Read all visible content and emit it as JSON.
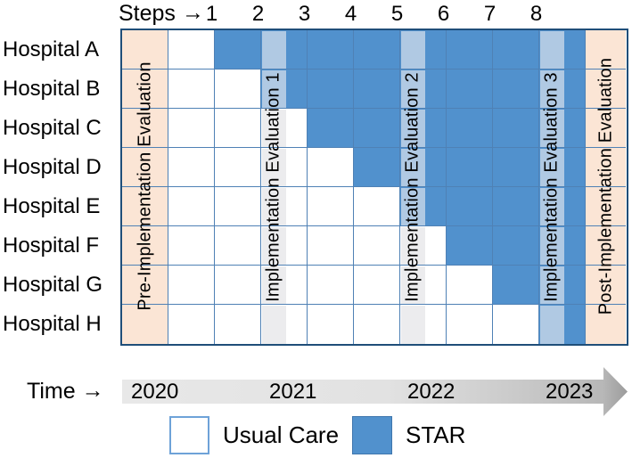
{
  "figure": {
    "steps_label": "Steps",
    "time_label": "Time",
    "arrow": "→",
    "steps": [
      "1",
      "2",
      "3",
      "4",
      "5",
      "6",
      "7",
      "8"
    ],
    "hospitals": [
      {
        "label": "Hospital A",
        "star_from_step": 1
      },
      {
        "label": "Hospital B",
        "star_from_step": 2
      },
      {
        "label": "Hospital C",
        "star_from_step": 3
      },
      {
        "label": "Hospital D",
        "star_from_step": 4
      },
      {
        "label": "Hospital E",
        "star_from_step": 5
      },
      {
        "label": "Hospital F",
        "star_from_step": 6
      },
      {
        "label": "Hospital G",
        "star_from_step": 7
      },
      {
        "label": "Hospital H",
        "star_from_step": 8
      }
    ],
    "pre_label": "Pre-Implementation Evaluation",
    "post_label": "Post-Implementation Evaluation",
    "bands": [
      {
        "label": "Implementation Evaluation 1",
        "at_step": 2
      },
      {
        "label": "Implementation Evaluation 2",
        "at_step": 5
      },
      {
        "label": "Implementation Evaluation 3",
        "at_step": 8
      }
    ],
    "years": [
      "2020",
      "2021",
      "2022",
      "2023"
    ],
    "legend": [
      {
        "label": "Usual Care",
        "swatch": "usual"
      },
      {
        "label": "STAR",
        "swatch": "star"
      }
    ],
    "colors": {
      "star": "#5191cd",
      "usual_care": "#ffffff",
      "evaluation_peach": "#fbe5d5",
      "band_over_star": "#b0c9e3",
      "band_over_usual": "#ececee",
      "gridline": "#4f81b5",
      "outer_border": "#1f4e79"
    }
  }
}
